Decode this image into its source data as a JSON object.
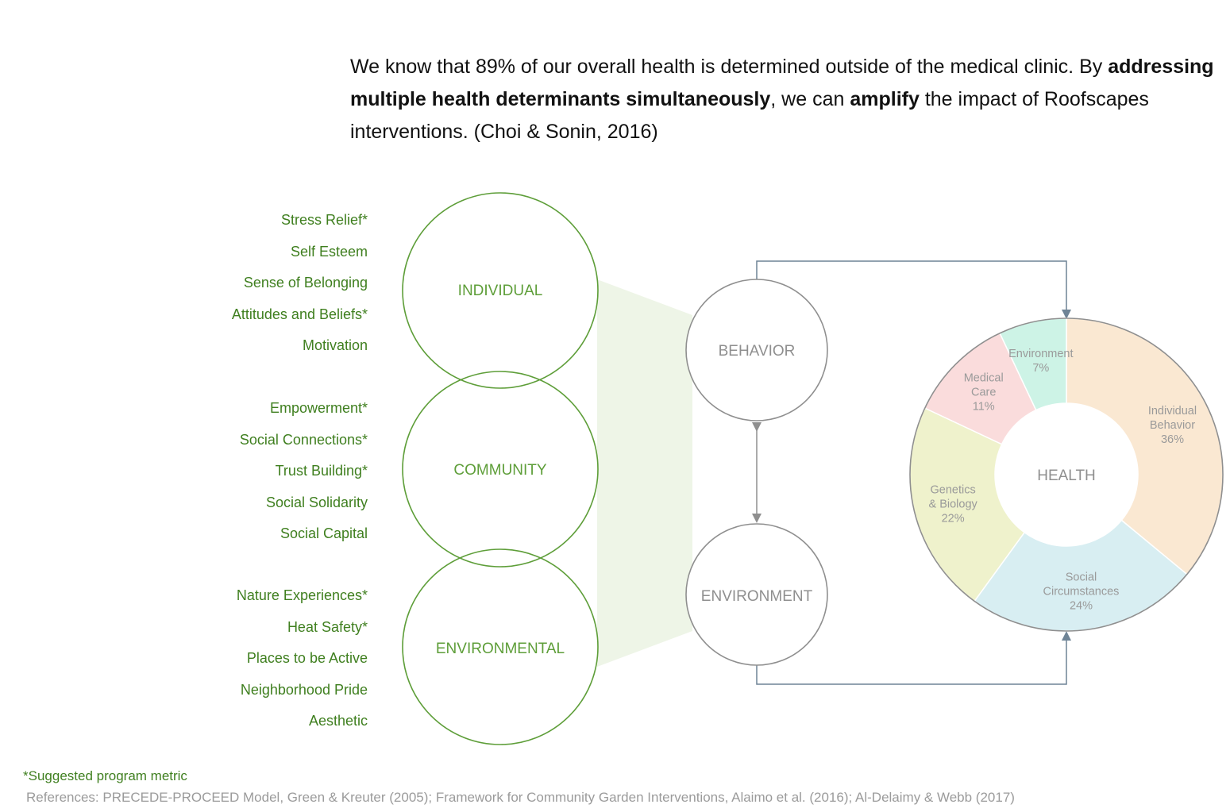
{
  "intro": {
    "part1": "We know that 89% of our overall health is determined outside of the medical clinic. By ",
    "bold1": "addressing multiple health determinants simultaneously",
    "part2": ", we can ",
    "bold2": "amplify",
    "part3": " the impact of Roofscapes interventions. (Choi & Sonin, 2016)"
  },
  "groups": {
    "individual": {
      "circle_label": "INDIVIDUAL",
      "items": [
        "Stress Relief*",
        "Self Esteem",
        "Sense of Belonging",
        "Attitudes and Beliefs*",
        "Motivation"
      ]
    },
    "community": {
      "circle_label": "COMMUNITY",
      "items": [
        "Empowerment*",
        "Social Connections*",
        "Trust Building*",
        "Social Solidarity",
        "Social Capital"
      ]
    },
    "environmental": {
      "circle_label": "ENVIRONMENTAL",
      "items": [
        "Nature Experiences*",
        "Heat Safety*",
        "Places to be Active",
        "Neighborhood Pride",
        "Aesthetic"
      ]
    }
  },
  "middle": {
    "behavior_label": "BEHAVIOR",
    "environment_label": "ENVIRONMENT"
  },
  "chart_data": {
    "type": "pie",
    "center_label": "HEALTH",
    "slices": [
      {
        "label_lines": [
          "Individual",
          "Behavior"
        ],
        "percent_text": "36%",
        "value": 36,
        "color": "#fae8d2"
      },
      {
        "label_lines": [
          "Social",
          "Circumstances"
        ],
        "percent_text": "24%",
        "value": 24,
        "color": "#d8eef2"
      },
      {
        "label_lines": [
          "Genetics",
          "& Biology"
        ],
        "percent_text": "22%",
        "value": 22,
        "color": "#eff2cc"
      },
      {
        "label_lines": [
          "Medical",
          "Care"
        ],
        "percent_text": "11%",
        "value": 11,
        "color": "#fadcdc"
      },
      {
        "label_lines": [
          "Environment"
        ],
        "percent_text": "7%",
        "value": 7,
        "color": "#cdf3e6"
      }
    ]
  },
  "colors": {
    "green": "#5e9e39",
    "green_text": "#3f7f1f",
    "green_fill": "#eef5e7",
    "gray": "#8f8f8f",
    "connector": "#6f8496"
  },
  "footnote": "*Suggested program metric",
  "references": "References: PRECEDE-PROCEED Model, Green & Kreuter (2005); Framework for Community Garden Interventions, Alaimo et al. (2016); Al-Delaimy & Webb (2017)"
}
